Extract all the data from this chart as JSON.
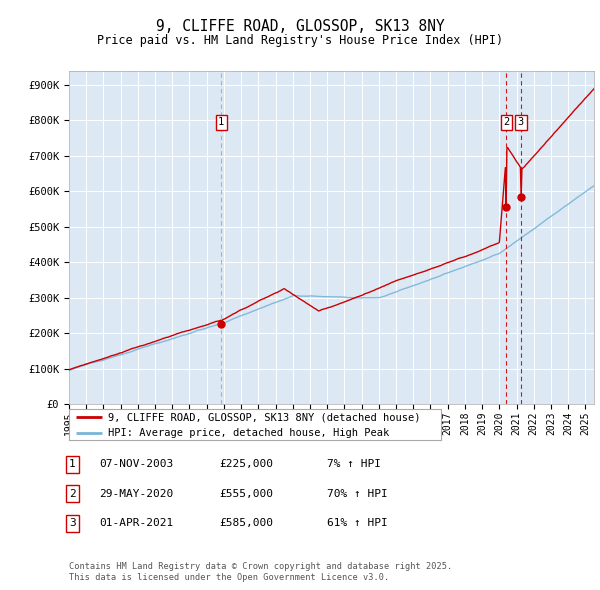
{
  "title": "9, CLIFFE ROAD, GLOSSOP, SK13 8NY",
  "subtitle": "Price paid vs. HM Land Registry's House Price Index (HPI)",
  "ylabel_ticks": [
    "£0",
    "£100K",
    "£200K",
    "£300K",
    "£400K",
    "£500K",
    "£600K",
    "£700K",
    "£800K",
    "£900K"
  ],
  "ytick_values": [
    0,
    100000,
    200000,
    300000,
    400000,
    500000,
    600000,
    700000,
    800000,
    900000
  ],
  "ylim": [
    0,
    940000
  ],
  "xlim_start": 1995.0,
  "xlim_end": 2025.5,
  "background_color": "#dce9f5",
  "grid_color": "#ffffff",
  "red_line_color": "#cc0000",
  "blue_line_color": "#7ab4d8",
  "transactions": [
    {
      "label": "1",
      "date": "07-NOV-2003",
      "year": 2003.85,
      "price": 225000,
      "hpi_pct": "7%",
      "vline_color": "#aaaaaa"
    },
    {
      "label": "2",
      "date": "29-MAY-2020",
      "year": 2020.41,
      "price": 555000,
      "hpi_pct": "70%",
      "vline_color": "#cc0000"
    },
    {
      "label": "3",
      "date": "01-APR-2021",
      "year": 2021.25,
      "price": 585000,
      "hpi_pct": "61%",
      "vline_color": "#cc0000"
    }
  ],
  "legend_line1": "9, CLIFFE ROAD, GLOSSOP, SK13 8NY (detached house)",
  "legend_line2": "HPI: Average price, detached house, High Peak",
  "footer1": "Contains HM Land Registry data © Crown copyright and database right 2025.",
  "footer2": "This data is licensed under the Open Government Licence v3.0.",
  "table_rows": [
    [
      "1",
      "07-NOV-2003",
      "£225,000",
      "7% ↑ HPI"
    ],
    [
      "2",
      "29-MAY-2020",
      "£555,000",
      "70% ↑ HPI"
    ],
    [
      "3",
      "01-APR-2021",
      "£585,000",
      "61% ↑ HPI"
    ]
  ]
}
